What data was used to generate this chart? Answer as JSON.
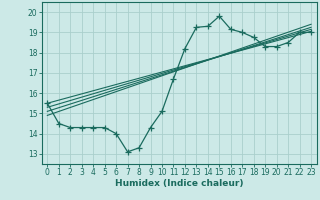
{
  "title": "",
  "xlabel": "Humidex (Indice chaleur)",
  "ylabel": "",
  "xlim": [
    -0.5,
    23.5
  ],
  "ylim": [
    12.5,
    20.5
  ],
  "yticks": [
    13,
    14,
    15,
    16,
    17,
    18,
    19,
    20
  ],
  "xticks": [
    0,
    1,
    2,
    3,
    4,
    5,
    6,
    7,
    8,
    9,
    10,
    11,
    12,
    13,
    14,
    15,
    16,
    17,
    18,
    19,
    20,
    21,
    22,
    23
  ],
  "bg_color": "#cce9e7",
  "grid_color": "#aacfcc",
  "line_color": "#1a6b5e",
  "data_x": [
    0,
    1,
    2,
    3,
    4,
    5,
    6,
    7,
    8,
    9,
    10,
    11,
    12,
    13,
    14,
    15,
    16,
    17,
    18,
    19,
    20,
    21,
    22,
    23
  ],
  "data_y": [
    15.5,
    14.5,
    14.3,
    14.3,
    14.3,
    14.3,
    14.0,
    13.1,
    13.3,
    14.3,
    15.1,
    16.7,
    18.2,
    19.25,
    19.3,
    19.8,
    19.15,
    19.0,
    18.75,
    18.3,
    18.3,
    18.5,
    19.0,
    19.0
  ],
  "reg_lines": [
    {
      "x0": 0,
      "y0": 15.5,
      "x1": 23,
      "y1": 19.05
    },
    {
      "x0": 0,
      "y0": 15.3,
      "x1": 23,
      "y1": 19.15
    },
    {
      "x0": 0,
      "y0": 15.1,
      "x1": 23,
      "y1": 19.25
    },
    {
      "x0": 0,
      "y0": 14.9,
      "x1": 23,
      "y1": 19.4
    }
  ],
  "tick_fontsize": 5.5,
  "xlabel_fontsize": 6.5,
  "xlabel_bold": true
}
